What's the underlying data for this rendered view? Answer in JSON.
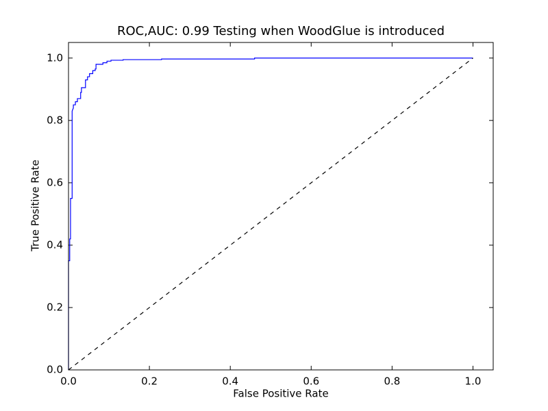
{
  "chart_data": {
    "type": "line",
    "title": "ROC,AUC: 0.99 Testing when WoodGlue is introduced",
    "x_label": "False Positive Rate",
    "y_label": "True Positive Rate",
    "xlim": [
      0,
      1.05
    ],
    "ylim": [
      0,
      1.05
    ],
    "xticks": [
      {
        "value": 0,
        "label": "0.0"
      },
      {
        "value": 0.2,
        "label": "0.2"
      },
      {
        "value": 0.4,
        "label": "0.4"
      },
      {
        "value": 0.6,
        "label": "0.6"
      },
      {
        "value": 0.8,
        "label": "0.8"
      },
      {
        "value": 1,
        "label": "1.0"
      }
    ],
    "yticks": [
      {
        "value": 0,
        "label": "0.0"
      },
      {
        "value": 0.2,
        "label": "0.2"
      },
      {
        "value": 0.4,
        "label": "0.4"
      },
      {
        "value": 0.6,
        "label": "0.6"
      },
      {
        "value": 0.8,
        "label": "0.8"
      },
      {
        "value": 1,
        "label": "1.0"
      }
    ],
    "grid": false,
    "series": [
      {
        "color": "#0000ff",
        "linestyle": "solid",
        "x": [
          0,
          0,
          0.003,
          0.003,
          0.005,
          0.005,
          0.009,
          0.009,
          0.012,
          0.012,
          0.017,
          0.017,
          0.022,
          0.022,
          0.03,
          0.03,
          0.032,
          0.032,
          0.042,
          0.042,
          0.047,
          0.047,
          0.052,
          0.052,
          0.06,
          0.06,
          0.066,
          0.066,
          0.068,
          0.068,
          0.085,
          0.085,
          0.095,
          0.095,
          0.105,
          0.105,
          0.135,
          0.135,
          0.23,
          0.23,
          0.46,
          0.46,
          1.0
        ],
        "values": [
          0,
          0.35,
          0.35,
          0.42,
          0.42,
          0.55,
          0.55,
          0.83,
          0.84,
          0.85,
          0.85,
          0.86,
          0.86,
          0.87,
          0.87,
          0.89,
          0.89,
          0.905,
          0.905,
          0.93,
          0.93,
          0.94,
          0.94,
          0.95,
          0.95,
          0.96,
          0.96,
          0.965,
          0.965,
          0.98,
          0.98,
          0.985,
          0.985,
          0.99,
          0.99,
          0.993,
          0.993,
          0.995,
          0.995,
          0.997,
          0.997,
          1.0,
          1.0
        ]
      },
      {
        "color": "#000000",
        "linestyle": "dashed",
        "x": [
          0,
          1
        ],
        "values": [
          0,
          1
        ]
      }
    ]
  }
}
